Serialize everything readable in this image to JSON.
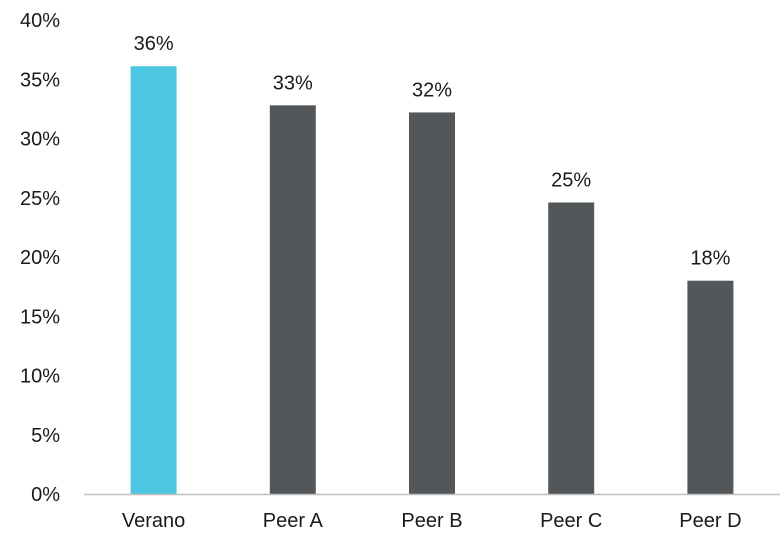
{
  "chart_data": {
    "type": "bar",
    "categories": [
      "Verano",
      "Peer A",
      "Peer B",
      "Peer C",
      "Peer D"
    ],
    "values": [
      36.1,
      32.8,
      32.2,
      24.6,
      18.0
    ],
    "data_labels": [
      "36%",
      "33%",
      "32%",
      "25%",
      "18%"
    ],
    "bar_colors": [
      "#4dc6e2",
      "#545759",
      "#545759",
      "#545759",
      "#545759"
    ],
    "ylim": [
      0,
      40
    ],
    "yticks": [
      0,
      5,
      10,
      15,
      20,
      25,
      30,
      35,
      40
    ],
    "ytick_labels": [
      "0%",
      "5%",
      "10%",
      "15%",
      "20%",
      "25%",
      "30%",
      "35%",
      "40%"
    ],
    "grid": false,
    "axis_color": "#bfbfbf"
  }
}
